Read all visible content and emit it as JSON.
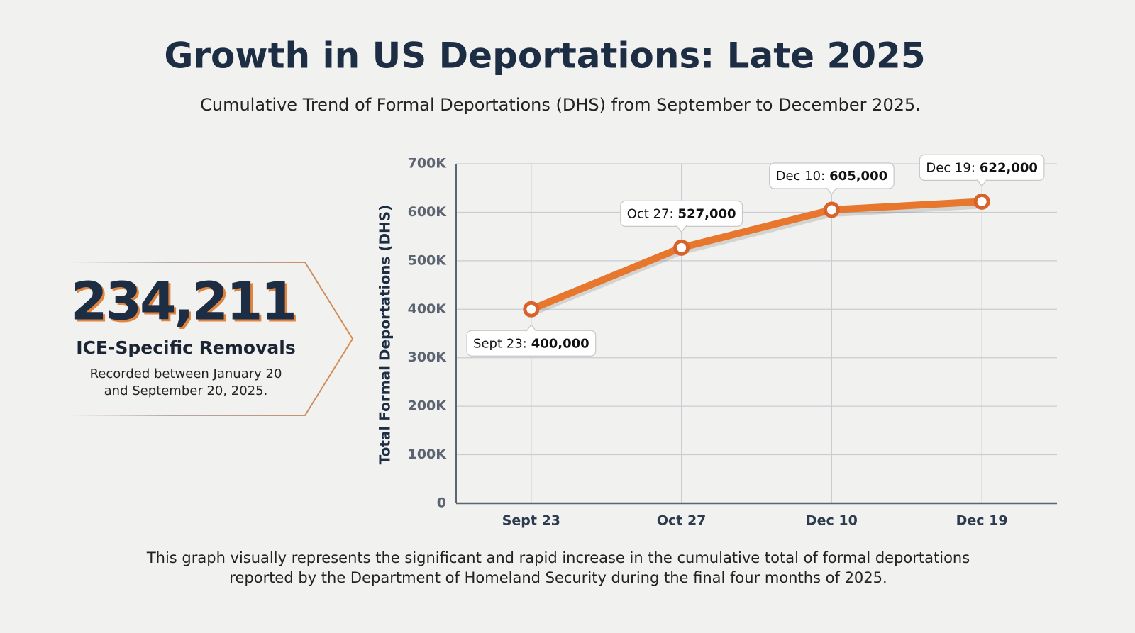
{
  "header": {
    "title": "Growth in US Deportations: Late 2025",
    "subtitle": "Cumulative Trend of Formal Deportations (DHS) from September to December 2025."
  },
  "callout": {
    "value": "234,211",
    "label": "ICE-Specific Removals",
    "description": [
      "Recorded between January 20",
      "and September 20, 2025."
    ]
  },
  "chart_data": {
    "type": "line",
    "y_label": "Total Formal Deportations (DHS)",
    "categories": [
      "Sept 23",
      "Oct 27",
      "Dec 10",
      "Dec 19"
    ],
    "values": [
      400000,
      527000,
      605000,
      622000
    ],
    "value_labels": [
      "400,000",
      "527,000",
      "605,000",
      "622,000"
    ],
    "annotation_prefixes": [
      "Sept 23:",
      "Oct 27:",
      "Dec 10:",
      "Dec 19:"
    ],
    "color": "#e8772e",
    "ylim": [
      0,
      700000
    ],
    "yticks": [
      0,
      {
        "value": 100000,
        "label": "100K"
      },
      {
        "value": 200000,
        "label": "200K"
      },
      {
        "value": 300000,
        "label": "300K"
      },
      {
        "value": 400000,
        "label": "400K"
      },
      {
        "value": 500000,
        "label": "500K"
      },
      {
        "value": 600000,
        "label": "600K"
      },
      {
        "value": 700000,
        "label": "700K"
      }
    ],
    "grid": true
  },
  "footer": [
    "This graph visually represents the significant and rapid increase in the cumulative total of formal deportations",
    "reported by the Department of Homeland Security during the final four months of 2025."
  ]
}
